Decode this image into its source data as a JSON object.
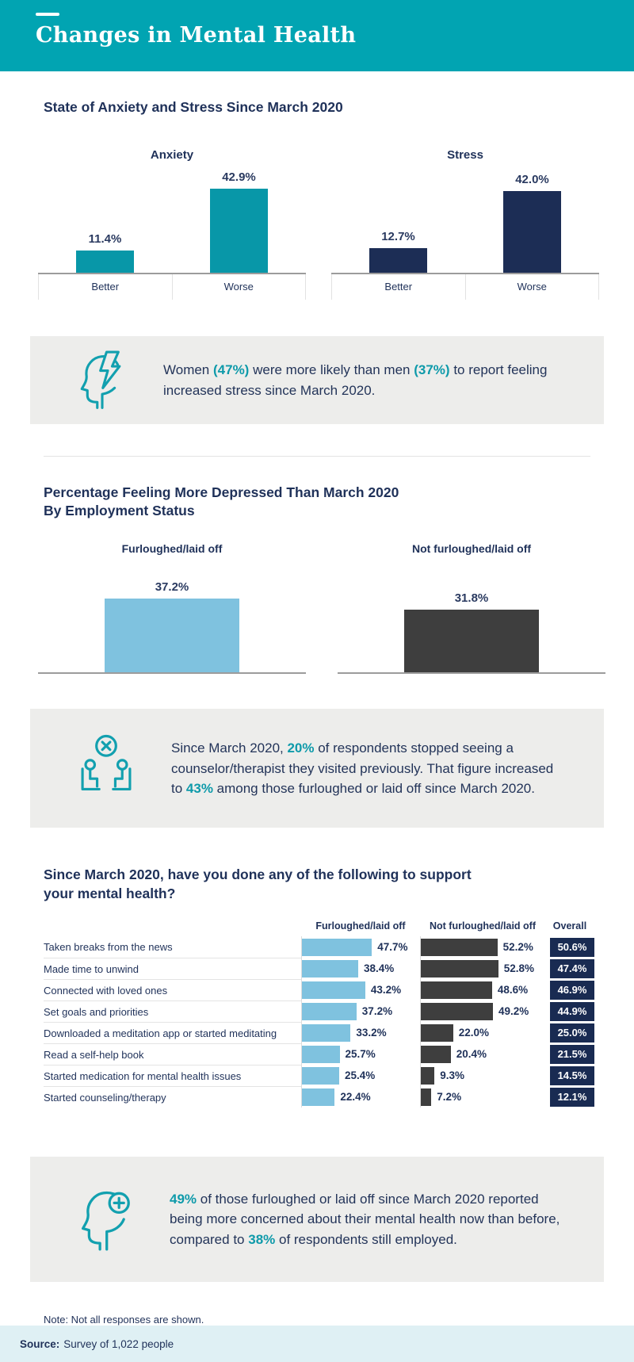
{
  "header": {
    "title": "Changes in Mental Health"
  },
  "sections": {
    "anxiety_stress_heading": "State of Anxiety and Stress Since March 2020",
    "depressed_heading": "Percentage Feeling More Depressed Than March 2020 By Employment Status",
    "support_heading": "Since March 2020, have you done any of the following to support your mental health?"
  },
  "chart_data": [
    {
      "type": "bar",
      "title": "State of Anxiety and Stress Since March 2020",
      "ylim": [
        0,
        50
      ],
      "grid": false,
      "groups": [
        {
          "name": "Anxiety",
          "color": "#0897A8",
          "categories": [
            "Better",
            "Worse"
          ],
          "values": [
            11.4,
            42.9
          ],
          "labels": [
            "11.4%",
            "42.9%"
          ]
        },
        {
          "name": "Stress",
          "color": "#1C2D55",
          "categories": [
            "Better",
            "Worse"
          ],
          "values": [
            12.7,
            42.0
          ],
          "labels": [
            "12.7%",
            "42.0%"
          ]
        }
      ]
    },
    {
      "type": "bar",
      "title": "Percentage Feeling More Depressed Than March 2020 By Employment Status",
      "ylim": [
        0,
        45
      ],
      "grid": false,
      "categories": [
        "Furloughed/laid off",
        "Not furloughed/laid off"
      ],
      "values": [
        37.2,
        31.8
      ],
      "labels": [
        "37.2%",
        "31.8%"
      ],
      "colors": [
        "#7FC2DF",
        "#3E3E3E"
      ]
    },
    {
      "type": "bar",
      "orientation": "horizontal",
      "title": "Since March 2020, have you done any of the following to support your mental health?",
      "xlim": [
        0,
        55
      ],
      "legend_position": "top",
      "columns": [
        "Furloughed/laid off",
        "Not furloughed/laid off",
        "Overall"
      ],
      "series_colors": {
        "furloughed": "#7FC2DF",
        "not_furloughed": "#3E3E3E",
        "overall_badge": "#192B52"
      },
      "rows": [
        {
          "category": "Taken breaks from the news",
          "furloughed": 47.7,
          "furloughed_label": "47.7%",
          "not_furloughed": 52.2,
          "not_furloughed_label": "52.2%",
          "overall": 50.6,
          "overall_label": "50.6%"
        },
        {
          "category": "Made time to unwind",
          "furloughed": 38.4,
          "furloughed_label": "38.4%",
          "not_furloughed": 52.8,
          "not_furloughed_label": "52.8%",
          "overall": 47.4,
          "overall_label": "47.4%"
        },
        {
          "category": "Connected with loved ones",
          "furloughed": 43.2,
          "furloughed_label": "43.2%",
          "not_furloughed": 48.6,
          "not_furloughed_label": "48.6%",
          "overall": 46.9,
          "overall_label": "46.9%"
        },
        {
          "category": "Set goals and priorities",
          "furloughed": 37.2,
          "furloughed_label": "37.2%",
          "not_furloughed": 49.2,
          "not_furloughed_label": "49.2%",
          "overall": 44.9,
          "overall_label": "44.9%"
        },
        {
          "category": "Downloaded a meditation app or started meditating",
          "furloughed": 33.2,
          "furloughed_label": "33.2%",
          "not_furloughed": 22.0,
          "not_furloughed_label": "22.0%",
          "overall": 25.0,
          "overall_label": "25.0%"
        },
        {
          "category": "Read a self-help book",
          "furloughed": 25.7,
          "furloughed_label": "25.7%",
          "not_furloughed": 20.4,
          "not_furloughed_label": "20.4%",
          "overall": 21.5,
          "overall_label": "21.5%"
        },
        {
          "category": "Started medication for mental health issues",
          "furloughed": 25.4,
          "furloughed_label": "25.4%",
          "not_furloughed": 9.3,
          "not_furloughed_label": "9.3%",
          "overall": 14.5,
          "overall_label": "14.5%"
        },
        {
          "category": "Started counseling/therapy",
          "furloughed": 22.4,
          "furloughed_label": "22.4%",
          "not_furloughed": 7.2,
          "not_furloughed_label": "7.2%",
          "overall": 12.1,
          "overall_label": "12.1%"
        }
      ]
    }
  ],
  "callouts": [
    {
      "icon": "head-lightning-icon",
      "segments": [
        {
          "text": "Women "
        },
        {
          "text": "(47%)",
          "highlight": true
        },
        {
          "text": " were more likely than men "
        },
        {
          "text": "(37%)",
          "highlight": true
        },
        {
          "text": " to report feeling increased stress since March 2020."
        }
      ]
    },
    {
      "icon": "counseling-cancel-icon",
      "segments": [
        {
          "text": "Since March 2020, "
        },
        {
          "text": "20%",
          "highlight": true
        },
        {
          "text": " of respondents stopped seeing a counselor/therapist they visited previously. That figure increased to "
        },
        {
          "text": "43%",
          "highlight": true
        },
        {
          "text": " among those furloughed or laid off since March 2020."
        }
      ]
    },
    {
      "icon": "head-plus-icon",
      "segments": [
        {
          "text": "49%",
          "highlight": true
        },
        {
          "text": " of those furloughed or laid off since March 2020 reported being more concerned about their mental health now than before, compared to "
        },
        {
          "text": "38%",
          "highlight": true
        },
        {
          "text": " of respondents still employed."
        }
      ]
    }
  ],
  "note": "Note: Not all responses are shown.",
  "footer": {
    "source_label": "Source:",
    "source_text": "Survey of 1,022 people"
  },
  "colors": {
    "teal_header": "#01A4B2",
    "teal_bar": "#0897A8",
    "navy": "#1C2D55",
    "light_blue": "#7FC2DF",
    "dark_gray": "#3E3E3E",
    "overall_navy": "#192B52",
    "callout_bg": "#EDEDEB",
    "footer_bg": "#DFF0F4",
    "highlight_teal": "#0E9AAA"
  }
}
